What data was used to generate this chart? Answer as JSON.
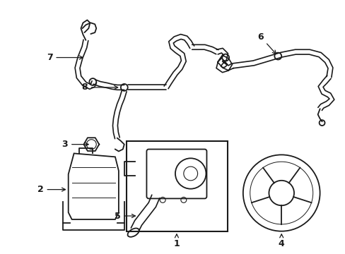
{
  "bg_color": "#ffffff",
  "line_color": "#1a1a1a",
  "figsize": [
    4.89,
    3.6
  ],
  "dpi": 100,
  "label_fontsize": 9
}
